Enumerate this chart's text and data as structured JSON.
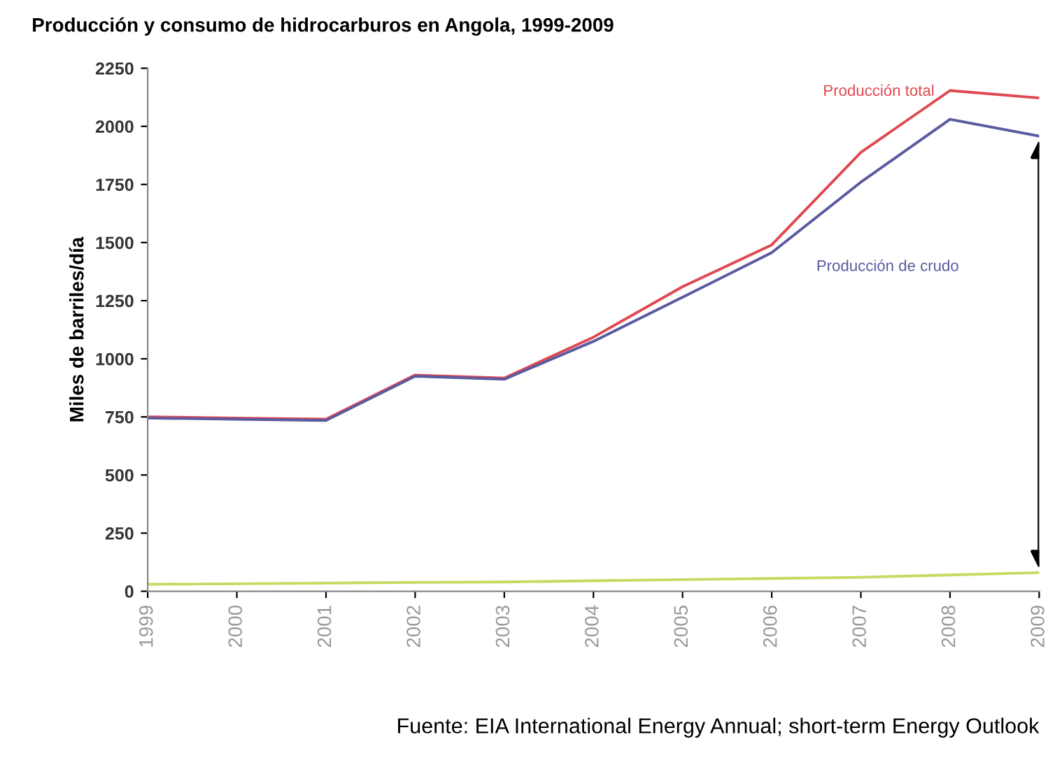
{
  "chart_data": {
    "type": "line",
    "title": "Producción y consumo de hidrocarburos en Angola, 1999-2009",
    "ylabel": "Miles de barriles/día",
    "x": [
      1999,
      2000,
      2001,
      2002,
      2003,
      2004,
      2005,
      2006,
      2007,
      2008,
      2009
    ],
    "series": [
      {
        "name": "Producción total",
        "color": "#e04850",
        "values": [
          750,
          745,
          740,
          930,
          917,
          1093,
          1310,
          1490,
          1888,
          2154,
          2122
        ]
      },
      {
        "name": "Producción de crudo",
        "color": "#5a5aa0",
        "values": [
          745,
          740,
          735,
          925,
          912,
          1075,
          1265,
          1457,
          1760,
          2030,
          1958
        ]
      },
      {
        "color": "#c8d860",
        "values": [
          30,
          32,
          35,
          38,
          40,
          45,
          50,
          55,
          60,
          70,
          80
        ]
      }
    ],
    "xlim": [
      1999,
      2009
    ],
    "xticks": [
      1999,
      2000,
      2001,
      2002,
      2003,
      2004,
      2005,
      2006,
      2007,
      2008,
      2009
    ],
    "ylim": [
      0,
      2250
    ],
    "yticks": [
      0,
      250,
      500,
      750,
      1000,
      1250,
      1500,
      1750,
      2000,
      2250
    ],
    "grid": false,
    "legend": false,
    "marker": "none",
    "line_style": "solid",
    "annotations": [
      "Fuente: EIA International Energy Annual; short-term Energy Outlook"
    ]
  }
}
